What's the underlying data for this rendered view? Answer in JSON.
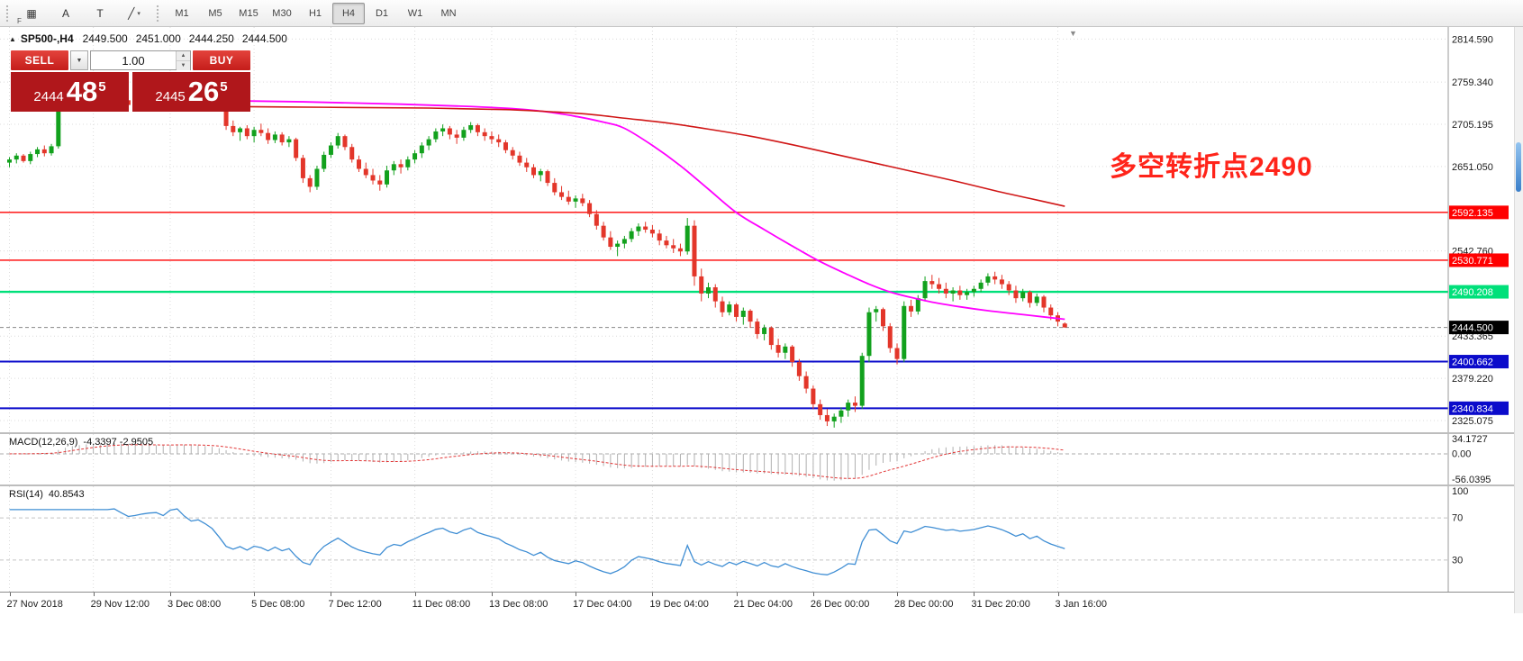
{
  "toolbar": {
    "tools": [
      {
        "name": "indicators-tool-icon",
        "glyph": "▦",
        "badge": "F"
      },
      {
        "name": "arrow-label-tool-icon",
        "glyph": "A"
      },
      {
        "name": "text-tool-icon",
        "glyph": "T"
      },
      {
        "name": "draw-line-tool-icon",
        "glyph": "╱",
        "dropdown": "▾"
      }
    ],
    "timeframes": [
      {
        "label": "M1"
      },
      {
        "label": "M5"
      },
      {
        "label": "M15"
      },
      {
        "label": "M30"
      },
      {
        "label": "H1"
      },
      {
        "label": "H4",
        "active": true
      },
      {
        "label": "D1"
      },
      {
        "label": "W1"
      },
      {
        "label": "MN"
      }
    ]
  },
  "chart": {
    "title": {
      "collapse_icon": "▲",
      "symbol_period": "SP500-,H4",
      "open": "2449.500",
      "high": "2451.000",
      "low": "2444.250",
      "close": "2444.500"
    },
    "shift_marker_icon": "▼",
    "trade_panel": {
      "sell_label": "SELL",
      "buy_label": "BUY",
      "volume": "1.00",
      "volume_dropdown_icon": "▼",
      "spin_up_icon": "▲",
      "spin_down_icon": "▼",
      "sell_price": {
        "prefix": "2444",
        "big": "48",
        "sup": "5"
      },
      "buy_price": {
        "prefix": "2445",
        "big": "26",
        "sup": "5"
      }
    },
    "annotation": {
      "text": "多空转折点2490",
      "color": "#ff241a"
    }
  },
  "chart_data": {
    "type": "candlestick",
    "symbol": "SP500-",
    "timeframe": "H4",
    "colors": {
      "up": "#12a11d",
      "down": "#e3362a",
      "grid": "#dcdcdc",
      "axis_text": "#1a1a1a",
      "macd_hist": "#b0b0b0",
      "macd_signal": "#e23636",
      "rsi": "#3f8ed4"
    },
    "price_axis": {
      "min": 2310,
      "max": 2830,
      "gridlines": [
        {
          "value": 2814.59,
          "label": "2814.590"
        },
        {
          "value": 2759.34,
          "label": "2759.340"
        },
        {
          "value": 2705.195,
          "label": "2705.195"
        },
        {
          "value": 2651.05,
          "label": "2651.050"
        },
        {
          "value": 2542.76,
          "label": "2542.760"
        },
        {
          "value": 2433.365,
          "label": "2433.365"
        },
        {
          "value": 2379.22,
          "label": "2379.220"
        },
        {
          "value": 2325.075,
          "label": "2325.075"
        }
      ]
    },
    "levels": [
      {
        "price": 2592.135,
        "label": "2592.135",
        "color": "#ff0000",
        "width": 1.4
      },
      {
        "price": 2530.771,
        "label": "2530.771",
        "color": "#ff0000",
        "width": 1.4
      },
      {
        "price": 2490.208,
        "label": "2490.208",
        "color": "#00e07a",
        "width": 2.4
      },
      {
        "price": 2400.662,
        "label": "2400.662",
        "color": "#0b0bcb",
        "width": 2
      },
      {
        "price": 2340.834,
        "label": "2340.834",
        "color": "#0b0bcb",
        "width": 2
      }
    ],
    "current_price": {
      "value": 2444.5,
      "label": "2444.500"
    },
    "time_labels": [
      {
        "label": "27 Nov 2018",
        "bar": 0
      },
      {
        "label": "29 Nov 12:00",
        "bar": 12
      },
      {
        "label": "3 Dec 08:00",
        "bar": 23
      },
      {
        "label": "5 Dec 08:00",
        "bar": 35
      },
      {
        "label": "7 Dec 12:00",
        "bar": 46
      },
      {
        "label": "11 Dec 08:00",
        "bar": 58
      },
      {
        "label": "13 Dec 08:00",
        "bar": 69
      },
      {
        "label": "17 Dec 04:00",
        "bar": 81
      },
      {
        "label": "19 Dec 04:00",
        "bar": 92
      },
      {
        "label": "21 Dec 04:00",
        "bar": 104
      },
      {
        "label": "26 Dec 00:00",
        "bar": 115
      },
      {
        "label": "28 Dec 00:00",
        "bar": 127
      },
      {
        "label": "31 Dec 20:00",
        "bar": 138
      },
      {
        "label": "3 Jan 16:00",
        "bar": 150
      }
    ],
    "candles": [
      [
        2656,
        2663,
        2650,
        2660
      ],
      [
        2660,
        2668,
        2655,
        2665
      ],
      [
        2665,
        2667,
        2656,
        2658
      ],
      [
        2658,
        2670,
        2654,
        2667
      ],
      [
        2667,
        2676,
        2663,
        2673
      ],
      [
        2673,
        2678,
        2664,
        2668
      ],
      [
        2668,
        2680,
        2665,
        2677
      ],
      [
        2677,
        2740,
        2674,
        2736
      ],
      [
        2736,
        2748,
        2730,
        2744
      ],
      [
        2744,
        2750,
        2736,
        2741
      ],
      [
        2741,
        2746,
        2730,
        2735
      ],
      [
        2735,
        2744,
        2728,
        2740
      ],
      [
        2740,
        2752,
        2736,
        2748
      ],
      [
        2748,
        2754,
        2740,
        2745
      ],
      [
        2745,
        2750,
        2734,
        2738
      ],
      [
        2738,
        2746,
        2730,
        2742
      ],
      [
        2742,
        2748,
        2732,
        2736
      ],
      [
        2736,
        2742,
        2726,
        2730
      ],
      [
        2730,
        2738,
        2722,
        2734
      ],
      [
        2734,
        2744,
        2728,
        2740
      ],
      [
        2740,
        2748,
        2734,
        2744
      ],
      [
        2744,
        2750,
        2736,
        2746
      ],
      [
        2746,
        2752,
        2738,
        2742
      ],
      [
        2755,
        2768,
        2750,
        2764
      ],
      [
        2764,
        2772,
        2760,
        2770
      ],
      [
        2770,
        2771,
        2756,
        2760
      ],
      [
        2760,
        2765,
        2748,
        2752
      ],
      [
        2752,
        2758,
        2744,
        2756
      ],
      [
        2756,
        2760,
        2746,
        2750
      ],
      [
        2750,
        2753,
        2738,
        2742
      ],
      [
        2742,
        2746,
        2722,
        2726
      ],
      [
        2726,
        2730,
        2698,
        2703
      ],
      [
        2703,
        2710,
        2690,
        2695
      ],
      [
        2695,
        2702,
        2684,
        2700
      ],
      [
        2700,
        2704,
        2686,
        2690
      ],
      [
        2690,
        2702,
        2682,
        2698
      ],
      [
        2698,
        2706,
        2690,
        2694
      ],
      [
        2694,
        2700,
        2680,
        2685
      ],
      [
        2685,
        2696,
        2681,
        2692
      ],
      [
        2692,
        2695,
        2678,
        2682
      ],
      [
        2682,
        2690,
        2676,
        2686
      ],
      [
        2686,
        2688,
        2658,
        2662
      ],
      [
        2662,
        2666,
        2630,
        2636
      ],
      [
        2636,
        2640,
        2618,
        2625
      ],
      [
        2625,
        2652,
        2621,
        2648
      ],
      [
        2648,
        2670,
        2644,
        2666
      ],
      [
        2666,
        2682,
        2662,
        2678
      ],
      [
        2678,
        2694,
        2674,
        2690
      ],
      [
        2690,
        2692,
        2672,
        2676
      ],
      [
        2676,
        2680,
        2656,
        2660
      ],
      [
        2660,
        2665,
        2644,
        2648
      ],
      [
        2648,
        2656,
        2636,
        2640
      ],
      [
        2640,
        2648,
        2628,
        2633
      ],
      [
        2633,
        2640,
        2620,
        2628
      ],
      [
        2628,
        2652,
        2624,
        2646
      ],
      [
        2646,
        2658,
        2640,
        2654
      ],
      [
        2654,
        2660,
        2642,
        2650
      ],
      [
        2650,
        2664,
        2646,
        2660
      ],
      [
        2660,
        2672,
        2655,
        2668
      ],
      [
        2668,
        2682,
        2662,
        2678
      ],
      [
        2678,
        2690,
        2672,
        2686
      ],
      [
        2686,
        2700,
        2682,
        2696
      ],
      [
        2696,
        2705,
        2690,
        2700
      ],
      [
        2700,
        2703,
        2686,
        2692
      ],
      [
        2692,
        2698,
        2680,
        2688
      ],
      [
        2688,
        2702,
        2684,
        2698
      ],
      [
        2698,
        2708,
        2694,
        2704
      ],
      [
        2704,
        2706,
        2690,
        2695
      ],
      [
        2695,
        2700,
        2684,
        2690
      ],
      [
        2690,
        2696,
        2680,
        2686
      ],
      [
        2686,
        2692,
        2676,
        2682
      ],
      [
        2682,
        2685,
        2668,
        2672
      ],
      [
        2672,
        2676,
        2660,
        2665
      ],
      [
        2665,
        2670,
        2652,
        2656
      ],
      [
        2656,
        2662,
        2644,
        2650
      ],
      [
        2650,
        2654,
        2636,
        2640
      ],
      [
        2640,
        2648,
        2632,
        2645
      ],
      [
        2645,
        2647,
        2626,
        2630
      ],
      [
        2630,
        2636,
        2614,
        2618
      ],
      [
        2618,
        2626,
        2608,
        2612
      ],
      [
        2612,
        2620,
        2602,
        2606
      ],
      [
        2606,
        2614,
        2598,
        2610
      ],
      [
        2610,
        2616,
        2600,
        2604
      ],
      [
        2604,
        2608,
        2586,
        2590
      ],
      [
        2590,
        2595,
        2570,
        2575
      ],
      [
        2575,
        2580,
        2556,
        2560
      ],
      [
        2560,
        2568,
        2544,
        2548
      ],
      [
        2548,
        2556,
        2536,
        2552
      ],
      [
        2552,
        2562,
        2546,
        2558
      ],
      [
        2558,
        2572,
        2554,
        2568
      ],
      [
        2568,
        2578,
        2562,
        2574
      ],
      [
        2574,
        2580,
        2566,
        2570
      ],
      [
        2570,
        2576,
        2560,
        2565
      ],
      [
        2565,
        2570,
        2550,
        2556
      ],
      [
        2556,
        2562,
        2546,
        2550
      ],
      [
        2550,
        2558,
        2540,
        2546
      ],
      [
        2546,
        2552,
        2536,
        2542
      ],
      [
        2542,
        2585,
        2538,
        2575
      ],
      [
        2575,
        2582,
        2498,
        2510
      ],
      [
        2510,
        2520,
        2478,
        2488
      ],
      [
        2488,
        2502,
        2482,
        2496
      ],
      [
        2496,
        2500,
        2470,
        2478
      ],
      [
        2478,
        2484,
        2458,
        2464
      ],
      [
        2464,
        2478,
        2460,
        2474
      ],
      [
        2474,
        2476,
        2452,
        2458
      ],
      [
        2458,
        2470,
        2448,
        2466
      ],
      [
        2466,
        2468,
        2444,
        2452
      ],
      [
        2452,
        2456,
        2430,
        2436
      ],
      [
        2436,
        2448,
        2428,
        2444
      ],
      [
        2444,
        2446,
        2416,
        2422
      ],
      [
        2422,
        2430,
        2406,
        2412
      ],
      [
        2412,
        2424,
        2404,
        2420
      ],
      [
        2420,
        2422,
        2394,
        2400
      ],
      [
        2400,
        2404,
        2376,
        2382
      ],
      [
        2382,
        2388,
        2360,
        2366
      ],
      [
        2366,
        2370,
        2340,
        2346
      ],
      [
        2346,
        2352,
        2326,
        2332
      ],
      [
        2332,
        2340,
        2318,
        2324
      ],
      [
        2324,
        2334,
        2316,
        2330
      ],
      [
        2330,
        2342,
        2322,
        2338
      ],
      [
        2338,
        2352,
        2330,
        2348
      ],
      [
        2348,
        2356,
        2336,
        2344
      ],
      [
        2344,
        2412,
        2340,
        2408
      ],
      [
        2408,
        2470,
        2400,
        2464
      ],
      [
        2464,
        2472,
        2452,
        2468
      ],
      [
        2468,
        2470,
        2440,
        2446
      ],
      [
        2446,
        2450,
        2412,
        2418
      ],
      [
        2418,
        2424,
        2397,
        2404
      ],
      [
        2404,
        2478,
        2400,
        2472
      ],
      [
        2472,
        2480,
        2458,
        2465
      ],
      [
        2465,
        2486,
        2461,
        2482
      ],
      [
        2482,
        2510,
        2478,
        2504
      ],
      [
        2504,
        2512,
        2494,
        2500
      ],
      [
        2500,
        2508,
        2488,
        2494
      ],
      [
        2494,
        2502,
        2482,
        2488
      ],
      [
        2488,
        2496,
        2478,
        2492
      ],
      [
        2492,
        2498,
        2480,
        2486
      ],
      [
        2486,
        2494,
        2480,
        2490
      ],
      [
        2490,
        2498,
        2484,
        2494
      ],
      [
        2494,
        2506,
        2490,
        2502
      ],
      [
        2502,
        2514,
        2498,
        2510
      ],
      [
        2510,
        2516,
        2500,
        2506
      ],
      [
        2506,
        2512,
        2494,
        2500
      ],
      [
        2500,
        2504,
        2486,
        2492
      ],
      [
        2492,
        2498,
        2476,
        2482
      ],
      [
        2482,
        2494,
        2478,
        2490
      ],
      [
        2490,
        2492,
        2470,
        2476
      ],
      [
        2476,
        2488,
        2472,
        2484
      ],
      [
        2484,
        2486,
        2464,
        2470
      ],
      [
        2470,
        2474,
        2454,
        2460
      ],
      [
        2460,
        2464,
        2446,
        2452
      ],
      [
        2449.5,
        2451,
        2444.25,
        2444.5
      ]
    ],
    "ma_lines": [
      {
        "name": "ma-fast-line",
        "color": "#ff00ff",
        "width": 1.8,
        "points": [
          [
            26,
            2736
          ],
          [
            42,
            2734
          ],
          [
            56,
            2731
          ],
          [
            66,
            2728
          ],
          [
            74,
            2724
          ],
          [
            80,
            2717
          ],
          [
            85,
            2708
          ],
          [
            88,
            2700
          ],
          [
            92,
            2678
          ],
          [
            96,
            2652
          ],
          [
            100,
            2622
          ],
          [
            104,
            2592
          ],
          [
            108,
            2570
          ],
          [
            112,
            2549
          ],
          [
            116,
            2529
          ],
          [
            120,
            2512
          ],
          [
            123,
            2500
          ],
          [
            126,
            2490
          ],
          [
            129,
            2483
          ],
          [
            132,
            2477
          ],
          [
            136,
            2471
          ],
          [
            140,
            2466
          ],
          [
            144,
            2462
          ],
          [
            148,
            2458
          ],
          [
            151,
            2455
          ]
        ]
      },
      {
        "name": "ma-slow-line",
        "color": "#d01616",
        "width": 1.6,
        "points": [
          [
            30,
            2728
          ],
          [
            45,
            2727
          ],
          [
            60,
            2726
          ],
          [
            71,
            2724
          ],
          [
            78,
            2721
          ],
          [
            83,
            2718
          ],
          [
            88,
            2713
          ],
          [
            94,
            2707
          ],
          [
            100,
            2699
          ],
          [
            106,
            2690
          ],
          [
            112,
            2679
          ],
          [
            118,
            2667
          ],
          [
            124,
            2655
          ],
          [
            129,
            2645
          ],
          [
            135,
            2633
          ],
          [
            141,
            2620
          ],
          [
            146,
            2610
          ],
          [
            151,
            2600
          ]
        ]
      }
    ],
    "macd": {
      "label": "MACD(12,26,9)",
      "values_text": "-4.3397 -2.9505",
      "fast": 12,
      "slow": 26,
      "signal_period": 9,
      "axis": {
        "max": 34.1727,
        "min": -56.0395,
        "labels": [
          {
            "value": 34.1727,
            "text": "34.1727"
          },
          {
            "value": 0,
            "text": "0.00"
          },
          {
            "value": -56.0395,
            "text": "-56.0395"
          }
        ]
      }
    },
    "rsi": {
      "label": "RSI(14)",
      "value_text": "40.8543",
      "period": 14,
      "levels": [
        70,
        30
      ],
      "axis_labels": [
        {
          "value": 100,
          "text": "100"
        },
        {
          "value": 70,
          "text": "70"
        },
        {
          "value": 30,
          "text": "30"
        }
      ]
    }
  }
}
